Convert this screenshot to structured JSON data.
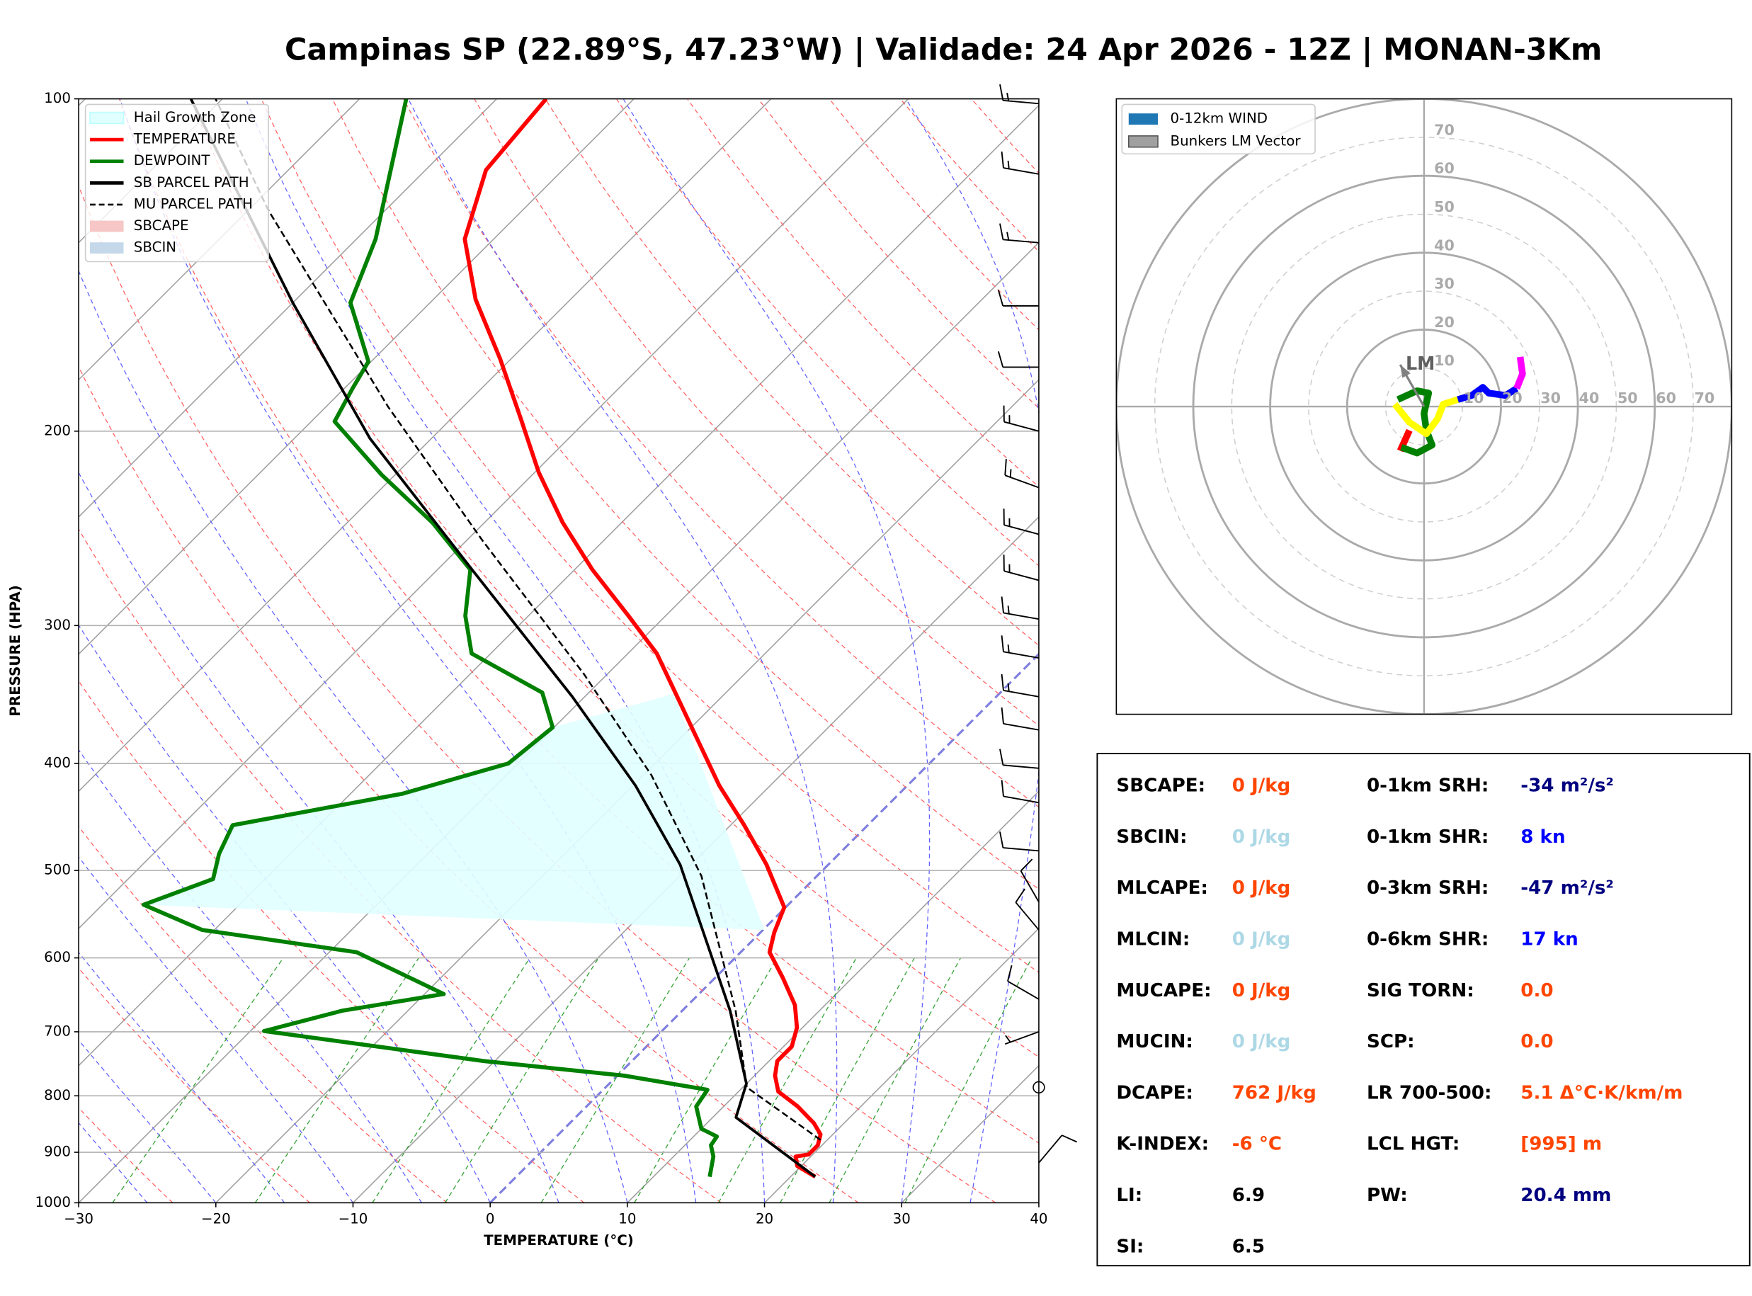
{
  "title": "Campinas SP (22.89°S, 47.23°W) | Validade: 24 Apr 2026 - 12Z | MONAN-3Km",
  "chart_data": [
    {
      "type": "skewt",
      "xlabel": "TEMPERATURE (°C)",
      "ylabel": "PRESSURE (HPA)",
      "xlim": [
        -30,
        40
      ],
      "ylim": [
        1000,
        100
      ],
      "log_y": true,
      "grid": true,
      "xticks": [
        {
          "value": -30,
          "label": "−30"
        },
        {
          "value": -20,
          "label": "−20"
        },
        {
          "value": -10,
          "label": "−10"
        },
        0,
        10,
        20,
        30,
        40
      ],
      "yticks": [
        100,
        200,
        300,
        400,
        500,
        600,
        700,
        800,
        900,
        1000
      ],
      "legend_position": "upper left",
      "series": [
        {
          "name": "TEMPERATURE",
          "color": "#ff0000",
          "linestyle": "solid",
          "x": [
            21.8,
            19.7,
            18.9,
            19.7,
            19.7,
            19.1,
            17.8,
            15.4,
            12.9,
            11.5,
            10.6,
            10.6,
            9.6,
            7.8,
            4.9,
            2.1,
            1.0,
            -0.1,
            -4.5,
            -9.0,
            -13.7,
            -19.0,
            -27.9,
            -32.7,
            -38.7,
            -44.3,
            -49.7,
            -54.9,
            -60.8,
            -66.9,
            -72.1,
            -75.6,
            -76.4
          ],
          "y": [
            947,
            926,
            908,
            904,
            887,
            867,
            847,
            818,
            793,
            767,
            744,
            722,
            694,
            662,
            625,
            593,
            569,
            540,
            494,
            455,
            419,
            378,
            318,
            294,
            267,
            242,
            218,
            195,
            172,
            152,
            134,
            116,
            100
          ]
        },
        {
          "name": "DEWPOINT",
          "color": "#008000",
          "linestyle": "solid",
          "x": [
            14.1,
            12.9,
            11.9,
            11.7,
            10.0,
            8.0,
            7.6,
            0.5,
            -10.8,
            -29.0,
            -24.8,
            -18.6,
            -28.0,
            -40.9,
            -47.0,
            -43.8,
            -45.2,
            -46.3,
            -36.2,
            -30.7,
            -30.1,
            -33.4,
            -41.4,
            -44.6,
            -47.6,
            -53.8,
            -61.0,
            -68.3,
            -69.4,
            -70.2,
            -75.8,
            -78.6,
            -86.6
          ],
          "y": [
            947,
            908,
            887,
            871,
            857,
            818,
            790,
            767,
            744,
            699,
            670,
            647,
            593,
            566,
            537,
            509,
            483,
            455,
            426,
            400,
            371,
            345,
            318,
            294,
            267,
            242,
            219,
            196,
            183,
            173,
            153,
            134,
            100
          ]
        },
        {
          "name": "SB PARCEL PATH",
          "color": "#000000",
          "linestyle": "solid",
          "x": [
            21.8,
            11.7,
            10.0,
            3.5,
            -3.1,
            -10.8,
            -19.8,
            -30.9,
            -47.7,
            -64.5,
            -80.0,
            -102.3
          ],
          "y": [
            947,
            837,
            780,
            670,
            582,
            494,
            419,
            348,
            266,
            203,
            153,
            100
          ]
        },
        {
          "name": "MU PARCEL PATH",
          "color": "#000000",
          "linestyle": "dashed",
          "x": [
            19.5,
            10.3,
            3.9,
            -8.4,
            -19.4,
            -31.7,
            -48.9,
            -65.5,
            -88.6,
            -100.5
          ],
          "y": [
            877,
            786,
            670,
            506,
            410,
            332,
            251,
            190,
            126,
            100
          ]
        }
      ],
      "fills": [
        {
          "name": "Hail Growth Zone",
          "color": "#e0ffff",
          "x": [
            -23.7,
            -30.1,
            -30.7,
            -36.2,
            -46.3,
            -45.2,
            -43.8,
            -47.0,
            0.1
          ],
          "y": [
            346,
            371,
            400,
            426,
            455,
            483,
            509,
            537,
            566
          ]
        },
        {
          "name": "SBCAPE",
          "color": "#f7c6c6"
        },
        {
          "name": "SBCIN",
          "color": "#c4d8ea"
        }
      ],
      "wind_barbs": {
        "pressure": [
          101,
          117,
          135,
          154,
          175,
          200,
          225,
          248,
          273,
          296,
          321,
          348,
          373,
          404,
          434,
          480,
          534,
          566,
          654,
          700,
          786,
          920
        ],
        "speed": [
          15,
          15,
          15,
          10,
          10,
          15,
          15,
          15,
          15,
          15,
          15,
          15,
          10,
          10,
          10,
          10,
          10,
          10,
          10,
          5,
          0,
          10
        ],
        "direction": [
          275,
          280,
          275,
          270,
          270,
          285,
          290,
          285,
          285,
          280,
          280,
          280,
          280,
          275,
          280,
          275,
          330,
          320,
          300,
          250,
          null,
          40
        ]
      }
    },
    {
      "type": "hodograph",
      "xlim": [
        -80,
        80
      ],
      "ylim": [
        -80,
        80
      ],
      "rticks": [
        10,
        20,
        30,
        40,
        50,
        60,
        70
      ],
      "major_rings": [
        20,
        40,
        60,
        80
      ],
      "legend_position": "upper left",
      "legend": [
        {
          "label": "0-12km WIND",
          "color": "#1f77b4"
        },
        {
          "label": "Bunkers LM Vector",
          "color": "#a0a0a0"
        }
      ],
      "series": [
        {
          "color": "#ff0000",
          "u": [
            -6.2,
            -3.8
          ],
          "v": [
            -11.5,
            -6.2
          ]
        },
        {
          "color": "#008000",
          "u": [
            -5.9,
            -1.8,
            2.1,
            0.6,
            0.0,
            1.2,
            -1.8,
            -6.8
          ],
          "v": [
            -10.6,
            -12.1,
            -10.0,
            -6.2,
            -1.8,
            3.5,
            4.1,
            1.8
          ]
        },
        {
          "color": "#ffff00",
          "u": [
            -7.6,
            -3.8,
            0.6,
            3.5,
            5.0,
            8.8
          ],
          "v": [
            0.6,
            -4.1,
            -7.1,
            -3.2,
            0.6,
            1.8
          ]
        },
        {
          "color": "#0000ff",
          "u": [
            8.8,
            12.4,
            15.3,
            16.8,
            21.2,
            24.1
          ],
          "v": [
            1.8,
            2.9,
            5.0,
            3.5,
            2.9,
            4.7
          ]
        },
        {
          "color": "#ff00ff",
          "u": [
            24.1,
            25.6,
            25.0
          ],
          "v": [
            4.7,
            8.5,
            12.9
          ]
        }
      ],
      "lm_vector": {
        "label": "LM",
        "u": -6.2,
        "v": 10.9,
        "color": "#808080"
      }
    }
  ],
  "stats": {
    "left": [
      {
        "label": "SBCAPE:",
        "value": "0 J/kg",
        "color": "#ff4500"
      },
      {
        "label": "SBCIN:",
        "value": "0 J/kg",
        "color": "#add8e6"
      },
      {
        "label": "MLCAPE:",
        "value": "0 J/kg",
        "color": "#ff4500"
      },
      {
        "label": "MLCIN:",
        "value": "0 J/kg",
        "color": "#add8e6"
      },
      {
        "label": "MUCAPE:",
        "value": "0 J/kg",
        "color": "#ff4500"
      },
      {
        "label": "MUCIN:",
        "value": "0 J/kg",
        "color": "#add8e6"
      },
      {
        "label": "DCAPE:",
        "value": "762 J/kg",
        "color": "#ff4500"
      },
      {
        "label": "K-INDEX:",
        "value": "-6 °C",
        "color": "#ff4500"
      },
      {
        "label": "LI:",
        "value": "6.9",
        "color": "#000000"
      },
      {
        "label": "SI:",
        "value": "6.5",
        "color": "#000000"
      }
    ],
    "right": [
      {
        "label": "0-1km SRH:",
        "value": "-34 m²/s²",
        "color": "#000080"
      },
      {
        "label": "0-1km SHR:",
        "value": "8 kn",
        "color": "#0000ff"
      },
      {
        "label": "0-3km SRH:",
        "value": "-47 m²/s²",
        "color": "#000080"
      },
      {
        "label": "0-6km SHR:",
        "value": "17 kn",
        "color": "#0000ff"
      },
      {
        "label": "SIG TORN:",
        "value": "0.0",
        "color": "#ff4500"
      },
      {
        "label": "SCP:",
        "value": "0.0",
        "color": "#ff4500"
      },
      {
        "label": "LR 700-500:",
        "value": "5.1 Δ°C·K/km/m",
        "color": "#ff4500"
      },
      {
        "label": "LCL HGT:",
        "value": "[995] m",
        "color": "#ff4500"
      },
      {
        "label": "PW:",
        "value": "20.4 mm",
        "color": "#000080"
      }
    ]
  }
}
